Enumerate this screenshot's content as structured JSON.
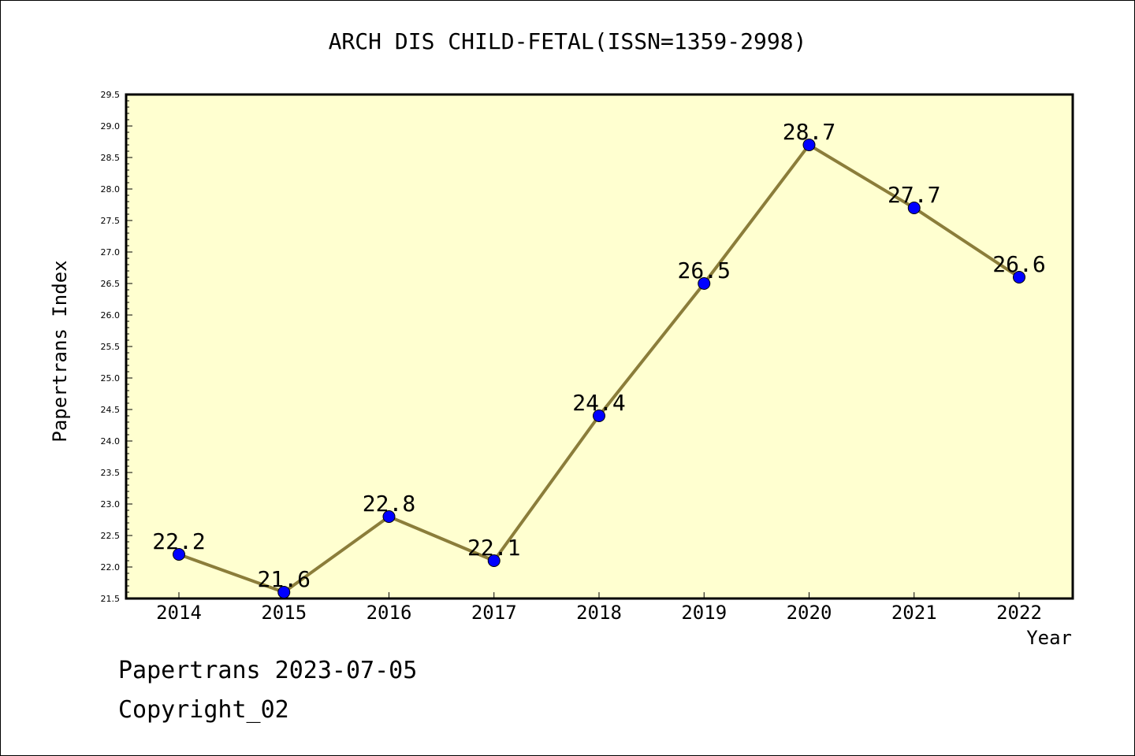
{
  "chart_data": {
    "type": "line",
    "title": "ARCH DIS CHILD-FETAL(ISSN=1359-2998)",
    "xlabel": "Year",
    "ylabel": "Papertrans Index",
    "categories": [
      "2014",
      "2015",
      "2016",
      "2017",
      "2018",
      "2019",
      "2020",
      "2021",
      "2022"
    ],
    "series": [
      {
        "values": [
          22.2,
          21.6,
          22.8,
          22.1,
          24.4,
          26.5,
          28.7,
          27.7,
          26.6
        ]
      }
    ],
    "data_labels": [
      "22.2",
      "21.6",
      "22.8",
      "22.1",
      "24.4",
      "26.5",
      "28.7",
      "27.7",
      "26.6"
    ],
    "y_ticks": [
      "21.5",
      "22.0",
      "22.5",
      "23.0",
      "23.5",
      "24.0",
      "24.5",
      "25.0",
      "25.5",
      "26.0",
      "26.5",
      "27.0",
      "27.5",
      "28.0",
      "28.5",
      "29.0",
      "29.5"
    ],
    "ylim": [
      21.5,
      29.5
    ],
    "grid": false,
    "colors": {
      "plot_bg": "#ffffd0",
      "line": "#8b7d3a",
      "marker": "#0000ff"
    }
  },
  "footer": {
    "line1": "Papertrans 2023-07-05",
    "line2": "Copyright_02"
  }
}
